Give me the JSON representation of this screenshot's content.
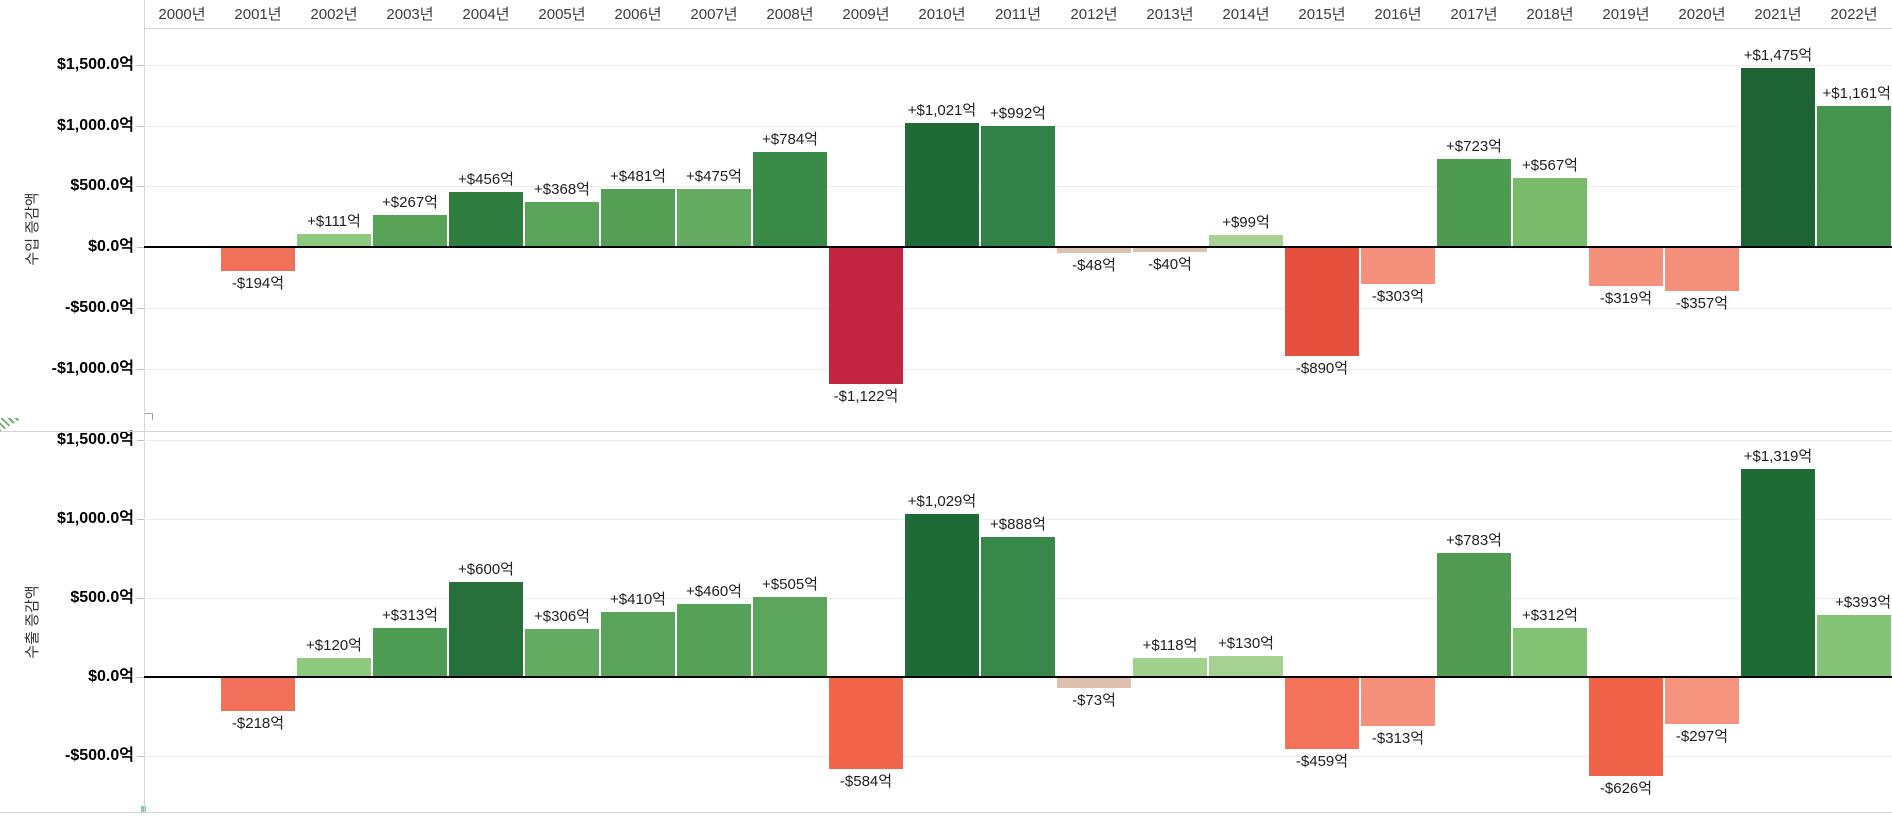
{
  "header": {
    "years": [
      "2000년",
      "2001년",
      "2002년",
      "2003년",
      "2004년",
      "2005년",
      "2006년",
      "2007년",
      "2008년",
      "2009년",
      "2010년",
      "2011년",
      "2012년",
      "2013년",
      "2014년",
      "2015년",
      "2016년",
      "2017년",
      "2018년",
      "2019년",
      "2020년",
      "2021년",
      "2022년"
    ]
  },
  "chart_data": [
    {
      "type": "bar",
      "title": "수입 증감액",
      "categories": [
        "2000년",
        "2001년",
        "2002년",
        "2003년",
        "2004년",
        "2005년",
        "2006년",
        "2007년",
        "2008년",
        "2009년",
        "2010년",
        "2011년",
        "2012년",
        "2013년",
        "2014년",
        "2015년",
        "2016년",
        "2017년",
        "2018년",
        "2019년",
        "2020년",
        "2021년",
        "2022년"
      ],
      "values": [
        null,
        -194,
        111,
        267,
        456,
        368,
        481,
        475,
        784,
        -1122,
        1021,
        992,
        -48,
        -40,
        99,
        -890,
        -303,
        723,
        567,
        -319,
        -357,
        1475,
        1161
      ],
      "labels": [
        null,
        "-$194억",
        "+$111억",
        "+$267억",
        "+$456억",
        "+$368억",
        "+$481억",
        "+$475억",
        "+$784억",
        "-$1,122억",
        "+$1,021억",
        "+$992억",
        "-$48억",
        "-$40억",
        "+$99억",
        "-$890억",
        "-$303억",
        "+$723억",
        "+$567억",
        "-$319억",
        "-$357억",
        "+$1,475억",
        "+$1,161억"
      ],
      "colors": [
        null,
        "#F2715B",
        "#8FC97D",
        "#56A257",
        "#2E7D3E",
        "#5AA45A",
        "#53A055",
        "#65AC62",
        "#3A8A47",
        "#C22441",
        "#1F6B38",
        "#318246",
        "#DCC2AE",
        "#DCC2AE",
        "#A7D293",
        "#E5503D",
        "#F5917B",
        "#4D9B51",
        "#79BB6B",
        "#F5917B",
        "#F48F79",
        "#1D6434",
        "#44944E"
      ],
      "ylabel": "수입 증감액",
      "unit_suffix": "억",
      "ylim": [
        -1500,
        1800
      ],
      "yticks": [
        {
          "value": 1500,
          "label": "$1,500.0억"
        },
        {
          "value": 1000,
          "label": "$1,000.0억"
        },
        {
          "value": 500,
          "label": "$500.0억"
        },
        {
          "value": 0,
          "label": "$0.0억"
        },
        {
          "value": -500,
          "label": "-$500.0억"
        },
        {
          "value": -1000,
          "label": "-$1,000.0억"
        }
      ],
      "grid": true,
      "legend": "none"
    },
    {
      "type": "bar",
      "title": "수출 증감액",
      "categories": [
        "2000년",
        "2001년",
        "2002년",
        "2003년",
        "2004년",
        "2005년",
        "2006년",
        "2007년",
        "2008년",
        "2009년",
        "2010년",
        "2011년",
        "2012년",
        "2013년",
        "2014년",
        "2015년",
        "2016년",
        "2017년",
        "2018년",
        "2019년",
        "2020년",
        "2021년",
        "2022년"
      ],
      "values": [
        null,
        -218,
        120,
        313,
        600,
        306,
        410,
        460,
        505,
        -584,
        1029,
        888,
        -73,
        118,
        130,
        -459,
        -313,
        783,
        312,
        -626,
        -297,
        1319,
        393
      ],
      "labels": [
        null,
        "-$218억",
        "+$120억",
        "+$313억",
        "+$600억",
        "+$306억",
        "+$410억",
        "+$460억",
        "+$505억",
        "-$584억",
        "+$1,029억",
        "+$888억",
        "-$73억",
        "+$118억",
        "+$130억",
        "-$459억",
        "-$313억",
        "+$783억",
        "+$312억",
        "-$626억",
        "-$297억",
        "+$1,319억",
        "+$393억"
      ],
      "colors": [
        null,
        "#F2715B",
        "#8FC97D",
        "#4F9D54",
        "#27703C",
        "#63AB61",
        "#58A45A",
        "#55A157",
        "#5BA65C",
        "#F2654A",
        "#1F6B38",
        "#388849",
        "#DEC0AC",
        "#A0D18D",
        "#A5D292",
        "#F3735A",
        "#F5917B",
        "#4F9C52",
        "#82C273",
        "#F16349",
        "#F6937D",
        "#1E6B36",
        "#85C476"
      ],
      "ylabel": "수출 증감액",
      "unit_suffix": "억",
      "ylim": [
        -855,
        1550
      ],
      "yticks": [
        {
          "value": 1500,
          "label": "$1,500.0억"
        },
        {
          "value": 1000,
          "label": "$1,000.0억"
        },
        {
          "value": 500,
          "label": "$500.0억"
        },
        {
          "value": 0,
          "label": "$0.0억"
        },
        {
          "value": -500,
          "label": "-$500.0억"
        }
      ],
      "grid": true,
      "legend": "none"
    }
  ]
}
